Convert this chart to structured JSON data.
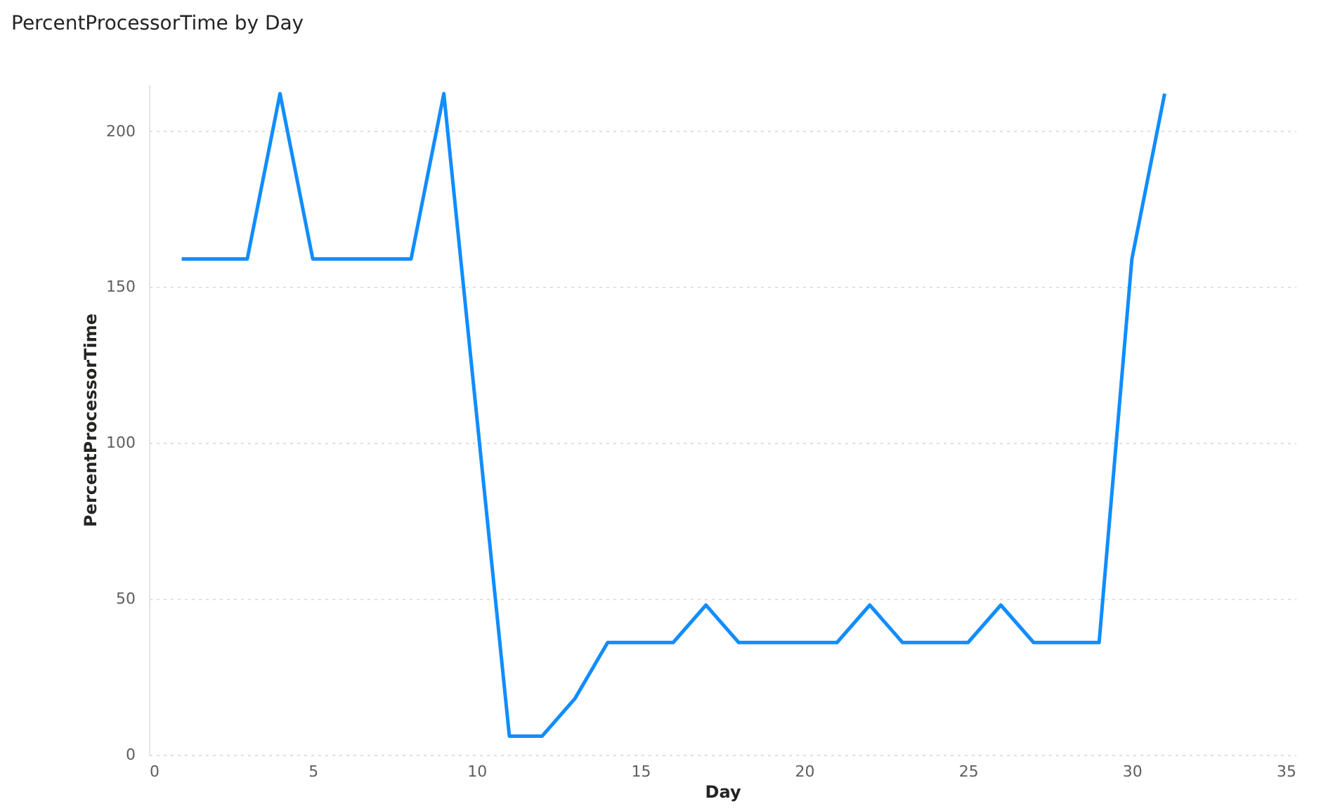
{
  "chart_data": {
    "type": "line",
    "title": "PercentProcessorTime by Day",
    "xlabel": "Day",
    "ylabel": "PercentProcessorTime",
    "x": [
      1,
      2,
      3,
      4,
      5,
      6,
      7,
      8,
      9,
      10,
      11,
      12,
      13,
      14,
      15,
      16,
      17,
      18,
      19,
      20,
      21,
      22,
      23,
      24,
      25,
      26,
      27,
      28,
      29,
      30,
      31
    ],
    "series": [
      {
        "color": "#118dff",
        "values": [
          159,
          159,
          159,
          212,
          159,
          159,
          159,
          159,
          212,
          109,
          6,
          6,
          18,
          36,
          36,
          36,
          48,
          36,
          36,
          36,
          36,
          48,
          36,
          36,
          36,
          48,
          36,
          36,
          36,
          159,
          212
        ]
      }
    ],
    "xlim": [
      0,
      35
    ],
    "xticks": [
      0,
      5,
      10,
      15,
      20,
      25,
      30,
      35
    ],
    "ylim": [
      0,
      215
    ],
    "yticks": [
      0,
      50,
      100,
      150,
      200
    ],
    "grid": "y",
    "marker": "none",
    "line_style": "solid",
    "legend": false
  }
}
